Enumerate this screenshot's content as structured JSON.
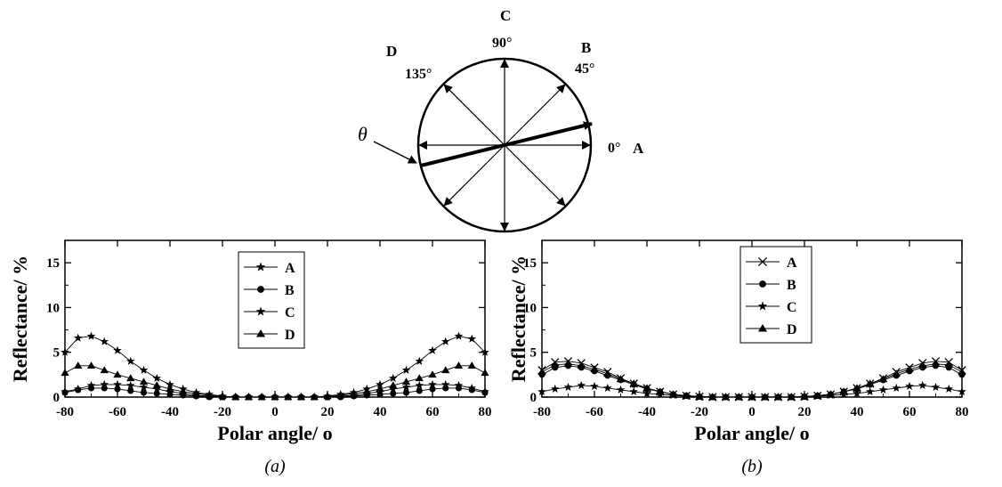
{
  "diagram": {
    "direction_labels": [
      {
        "letter": "A",
        "angle_label": "0°",
        "angle": 0
      },
      {
        "letter": "B",
        "angle_label": "45°",
        "angle": 45
      },
      {
        "letter": "C",
        "angle_label": "90°",
        "angle": 90
      },
      {
        "letter": "D",
        "angle_label": "135°",
        "angle": 135
      }
    ],
    "theta_symbol": "θ",
    "incidence_direction_deg": 15
  },
  "chart_data": [
    {
      "type": "line",
      "caption": "(a)",
      "xlabel": "Polar angle/ o",
      "ylabel": "Reflectance/ %",
      "xlim": [
        -80,
        80
      ],
      "ylim": [
        0,
        17.5
      ],
      "xticks": [
        "-80",
        "-60",
        "-40",
        "-20",
        "0",
        "20",
        "40",
        "60",
        "80"
      ],
      "yticks": [
        "0",
        "5",
        "10",
        "15"
      ],
      "legend_position": "top-center",
      "x": [
        -80,
        -75,
        -70,
        -65,
        -60,
        -55,
        -50,
        -45,
        -40,
        -35,
        -30,
        -25,
        -20,
        -15,
        -10,
        -5,
        0,
        5,
        10,
        15,
        20,
        25,
        30,
        35,
        40,
        45,
        50,
        55,
        60,
        65,
        70,
        75,
        80
      ],
      "series": [
        {
          "name": "A",
          "marker": "star",
          "values": [
            0.6,
            0.9,
            1.3,
            1.4,
            1.4,
            1.3,
            1.1,
            0.9,
            0.6,
            0.4,
            0.2,
            0.1,
            0,
            0,
            0,
            0,
            0,
            0,
            0,
            0,
            0,
            0.1,
            0.2,
            0.4,
            0.6,
            0.9,
            1.1,
            1.3,
            1.4,
            1.4,
            1.3,
            1.0,
            0.6
          ]
        },
        {
          "name": "B",
          "marker": "circle",
          "values": [
            0.5,
            0.8,
            1.0,
            1.0,
            0.9,
            0.7,
            0.5,
            0.4,
            0.3,
            0.2,
            0.1,
            0,
            0,
            0,
            0,
            0,
            0,
            0,
            0,
            0,
            0,
            0,
            0.1,
            0.2,
            0.3,
            0.4,
            0.5,
            0.7,
            0.9,
            1.0,
            1.0,
            0.8,
            0.5
          ]
        },
        {
          "name": "C",
          "marker": "star",
          "values": [
            5.0,
            6.6,
            6.8,
            6.2,
            5.2,
            4.0,
            3.0,
            2.1,
            1.4,
            0.9,
            0.5,
            0.3,
            0.1,
            0,
            0,
            0,
            0,
            0,
            0,
            0,
            0.1,
            0.3,
            0.5,
            0.9,
            1.4,
            2.1,
            3.0,
            4.0,
            5.2,
            6.2,
            6.8,
            6.5,
            5.0
          ]
        },
        {
          "name": "D",
          "marker": "triangle",
          "values": [
            2.7,
            3.5,
            3.5,
            3.0,
            2.5,
            2.1,
            1.7,
            1.3,
            0.9,
            0.6,
            0.4,
            0.2,
            0.1,
            0,
            0,
            0,
            0,
            0,
            0,
            0,
            0.1,
            0.2,
            0.4,
            0.6,
            0.9,
            1.3,
            1.7,
            2.1,
            2.5,
            3.0,
            3.5,
            3.5,
            2.7
          ]
        }
      ]
    },
    {
      "type": "line",
      "caption": "(b)",
      "xlabel": "Polar angle/ o",
      "ylabel": "Reflectance/ %",
      "xlim": [
        -80,
        80
      ],
      "ylim": [
        0,
        17.5
      ],
      "xticks": [
        "-80",
        "-60",
        "-40",
        "-20",
        "0",
        "20",
        "40",
        "60",
        "80"
      ],
      "yticks": [
        "0",
        "5",
        "10",
        "15"
      ],
      "legend_position": "top-center",
      "x": [
        -80,
        -75,
        -70,
        -65,
        -60,
        -55,
        -50,
        -45,
        -40,
        -35,
        -30,
        -25,
        -20,
        -15,
        -10,
        -5,
        0,
        5,
        10,
        15,
        20,
        25,
        30,
        35,
        40,
        45,
        50,
        55,
        60,
        65,
        70,
        75,
        80
      ],
      "series": [
        {
          "name": "A",
          "marker": "cross",
          "values": [
            3.0,
            3.9,
            4.0,
            3.8,
            3.3,
            2.8,
            2.1,
            1.5,
            1.0,
            0.6,
            0.3,
            0.15,
            0.05,
            0,
            0,
            0,
            0,
            0,
            0,
            0,
            0.05,
            0.15,
            0.3,
            0.6,
            1.0,
            1.5,
            2.1,
            2.8,
            3.3,
            3.8,
            4.0,
            3.9,
            3.0
          ]
        },
        {
          "name": "B",
          "marker": "circle",
          "values": [
            2.5,
            3.3,
            3.5,
            3.3,
            2.9,
            2.4,
            1.9,
            1.4,
            0.9,
            0.6,
            0.3,
            0.15,
            0.05,
            0,
            0,
            0,
            0,
            0,
            0,
            0,
            0.05,
            0.15,
            0.3,
            0.6,
            0.9,
            1.4,
            1.9,
            2.4,
            2.9,
            3.3,
            3.5,
            3.3,
            2.5
          ]
        },
        {
          "name": "C",
          "marker": "star",
          "values": [
            0.6,
            0.9,
            1.1,
            1.3,
            1.2,
            1.0,
            0.8,
            0.6,
            0.4,
            0.3,
            0.2,
            0.1,
            0,
            0,
            0,
            0,
            0,
            0,
            0,
            0,
            0,
            0.1,
            0.2,
            0.3,
            0.4,
            0.6,
            0.8,
            1.0,
            1.2,
            1.3,
            1.1,
            0.9,
            0.6
          ]
        },
        {
          "name": "D",
          "marker": "triangle",
          "values": [
            2.8,
            3.6,
            3.7,
            3.5,
            3.1,
            2.6,
            2.0,
            1.5,
            1.0,
            0.6,
            0.3,
            0.15,
            0.05,
            0,
            0,
            0,
            0,
            0,
            0,
            0,
            0.05,
            0.15,
            0.3,
            0.6,
            1.0,
            1.5,
            2.0,
            2.6,
            3.1,
            3.5,
            3.7,
            3.6,
            2.8
          ]
        }
      ]
    }
  ]
}
